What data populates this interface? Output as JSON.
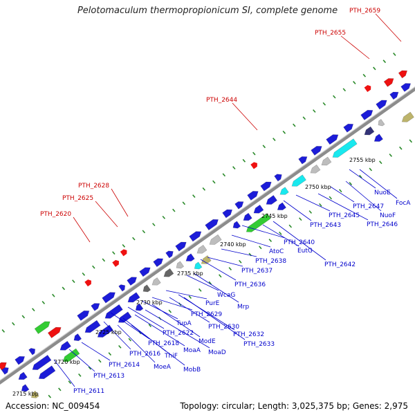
{
  "title": "Pelotomaculum thermopropionicum SI, complete genome",
  "footer": {
    "accession": "Accession: NC_009454",
    "summary": "Topology: circular; Length: 3,025,375 bp; Genes: 2,975"
  },
  "colors": {
    "backbone": "#8c8c8c",
    "gene_blue": "#1c1cd8",
    "gene_cyan": "#19e8ee",
    "gene_green": "#33cc33",
    "gene_red": "#ee1111",
    "gene_gray": "#bdbdbd",
    "gene_darkgray": "#666666",
    "gene_navy": "#333377",
    "gene_olive": "#bdb46b",
    "tick": "#2a8a2a",
    "label_blue": "#0000cc",
    "label_red": "#cc0000"
  },
  "kbp_labels": [
    "2715 kbp",
    "2720 kbp",
    "2725 kbp",
    "2730 kbp",
    "2735 kbp",
    "2740 kbp",
    "2745 kbp",
    "2750 kbp",
    "2755 kbp"
  ],
  "upper_labels": [
    "PTH_2620",
    "PTH_2625",
    "PTH_2628",
    "PTH_2644",
    "PTH_2655",
    "PTH_2659"
  ],
  "lower_labels": [
    "PTH_2611",
    "PTH_2613",
    "PTH_2614",
    "MoeA",
    "MobB",
    "PTH_2616",
    "ThiF",
    "PTH_2618",
    "MoaA",
    "MoaD",
    "PTH_2622",
    "ModE",
    "TupA",
    "PTH_2629",
    "PurE",
    "PTH_2630",
    "PTH_2632",
    "PTH_2633",
    "WcaG",
    "Mrp",
    "PTH_2636",
    "PTH_2637",
    "PTH_2638",
    "AtoC",
    "PTH_2640",
    "EutG",
    "PTH_2642",
    "PTH_2643",
    "PTH_2645",
    "PTH_2646",
    "PTH_2647",
    "NuoF",
    "NuoE",
    "FocA"
  ]
}
